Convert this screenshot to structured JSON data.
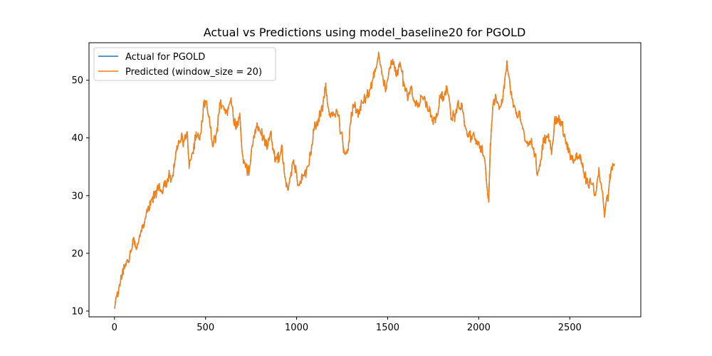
{
  "chart_data": {
    "type": "line",
    "title": "Actual vs Predictions using model_baseline20 for PGOLD",
    "xlabel": "",
    "ylabel": "",
    "xlim": [
      -140,
      2890
    ],
    "ylim": [
      9,
      56.5
    ],
    "xticks": [
      0,
      500,
      1000,
      1500,
      2000,
      2500
    ],
    "yticks": [
      10,
      20,
      30,
      40,
      50
    ],
    "grid": false,
    "legend_position": "top-left",
    "series": [
      {
        "name": "Actual for PGOLD",
        "color": "#1f77b4",
        "anchors": [
          [
            0,
            11.0
          ],
          [
            15,
            12.5
          ],
          [
            30,
            15.0
          ],
          [
            45,
            17.0
          ],
          [
            60,
            18.0
          ],
          [
            80,
            19.0
          ],
          [
            100,
            22.0
          ],
          [
            120,
            21.5
          ],
          [
            140,
            23.0
          ],
          [
            160,
            25.0
          ],
          [
            180,
            27.5
          ],
          [
            200,
            29.0
          ],
          [
            220,
            30.0
          ],
          [
            240,
            31.5
          ],
          [
            260,
            30.5
          ],
          [
            280,
            32.0
          ],
          [
            300,
            33.5
          ],
          [
            320,
            33.0
          ],
          [
            340,
            38.0
          ],
          [
            360,
            40.0
          ],
          [
            380,
            39.5
          ],
          [
            400,
            40.5
          ],
          [
            410,
            35.0
          ],
          [
            430,
            37.5
          ],
          [
            450,
            41.0
          ],
          [
            470,
            40.0
          ],
          [
            490,
            45.5
          ],
          [
            500,
            46.5
          ],
          [
            520,
            43.0
          ],
          [
            540,
            39.0
          ],
          [
            560,
            40.5
          ],
          [
            580,
            46.0
          ],
          [
            600,
            45.0
          ],
          [
            620,
            44.5
          ],
          [
            640,
            47.5
          ],
          [
            655,
            43.0
          ],
          [
            670,
            42.0
          ],
          [
            690,
            43.5
          ],
          [
            705,
            36.0
          ],
          [
            720,
            35.0
          ],
          [
            740,
            34.0
          ],
          [
            760,
            39.5
          ],
          [
            780,
            42.0
          ],
          [
            800,
            41.5
          ],
          [
            820,
            40.0
          ],
          [
            840,
            38.5
          ],
          [
            860,
            40.5
          ],
          [
            880,
            36.5
          ],
          [
            900,
            36.5
          ],
          [
            920,
            38.0
          ],
          [
            940,
            32.0
          ],
          [
            960,
            31.5
          ],
          [
            980,
            36.0
          ],
          [
            1000,
            34.0
          ],
          [
            1010,
            31.0
          ],
          [
            1030,
            33.5
          ],
          [
            1060,
            34.5
          ],
          [
            1080,
            38.0
          ],
          [
            1100,
            42.0
          ],
          [
            1120,
            43.0
          ],
          [
            1140,
            45.0
          ],
          [
            1160,
            49.0
          ],
          [
            1180,
            44.0
          ],
          [
            1200,
            43.5
          ],
          [
            1220,
            45.0
          ],
          [
            1240,
            41.5
          ],
          [
            1260,
            38.0
          ],
          [
            1280,
            37.0
          ],
          [
            1300,
            44.0
          ],
          [
            1320,
            46.0
          ],
          [
            1340,
            44.0
          ],
          [
            1360,
            46.0
          ],
          [
            1380,
            47.0
          ],
          [
            1400,
            48.0
          ],
          [
            1420,
            50.5
          ],
          [
            1440,
            52.0
          ],
          [
            1450,
            55.0
          ],
          [
            1470,
            50.5
          ],
          [
            1490,
            48.0
          ],
          [
            1510,
            52.0
          ],
          [
            1530,
            53.5
          ],
          [
            1550,
            51.0
          ],
          [
            1570,
            53.0
          ],
          [
            1590,
            49.0
          ],
          [
            1610,
            47.5
          ],
          [
            1630,
            48.5
          ],
          [
            1650,
            46.0
          ],
          [
            1670,
            45.5
          ],
          [
            1690,
            47.5
          ],
          [
            1710,
            46.0
          ],
          [
            1730,
            45.0
          ],
          [
            1750,
            43.0
          ],
          [
            1770,
            43.5
          ],
          [
            1790,
            48.0
          ],
          [
            1810,
            47.0
          ],
          [
            1830,
            48.5
          ],
          [
            1850,
            43.5
          ],
          [
            1870,
            44.0
          ],
          [
            1890,
            46.0
          ],
          [
            1910,
            45.0
          ],
          [
            1930,
            41.0
          ],
          [
            1950,
            40.5
          ],
          [
            1970,
            40.0
          ],
          [
            1990,
            39.5
          ],
          [
            2010,
            38.5
          ],
          [
            2030,
            37.0
          ],
          [
            2045,
            31.0
          ],
          [
            2055,
            29.5
          ],
          [
            2065,
            39.0
          ],
          [
            2080,
            46.5
          ],
          [
            2100,
            47.0
          ],
          [
            2120,
            45.0
          ],
          [
            2140,
            49.0
          ],
          [
            2155,
            53.5
          ],
          [
            2170,
            49.0
          ],
          [
            2190,
            46.0
          ],
          [
            2210,
            44.0
          ],
          [
            2230,
            43.5
          ],
          [
            2250,
            40.0
          ],
          [
            2270,
            39.0
          ],
          [
            2290,
            39.5
          ],
          [
            2310,
            37.0
          ],
          [
            2325,
            33.0
          ],
          [
            2340,
            36.5
          ],
          [
            2360,
            40.0
          ],
          [
            2380,
            40.5
          ],
          [
            2400,
            38.0
          ],
          [
            2420,
            43.5
          ],
          [
            2440,
            43.0
          ],
          [
            2460,
            42.0
          ],
          [
            2480,
            39.0
          ],
          [
            2500,
            37.5
          ],
          [
            2520,
            36.0
          ],
          [
            2540,
            37.0
          ],
          [
            2560,
            36.5
          ],
          [
            2580,
            33.5
          ],
          [
            2600,
            32.0
          ],
          [
            2620,
            32.5
          ],
          [
            2640,
            30.0
          ],
          [
            2660,
            34.5
          ],
          [
            2680,
            30.0
          ],
          [
            2690,
            26.5
          ],
          [
            2700,
            28.5
          ],
          [
            2710,
            30.0
          ],
          [
            2720,
            33.0
          ],
          [
            2730,
            34.5
          ],
          [
            2745,
            35.5
          ]
        ]
      },
      {
        "name": "Predicted (window_size = 20)",
        "color": "#ff7f0e",
        "anchors": [
          [
            0,
            11.0
          ],
          [
            15,
            12.5
          ],
          [
            30,
            15.0
          ],
          [
            45,
            17.0
          ],
          [
            60,
            18.0
          ],
          [
            80,
            19.0
          ],
          [
            100,
            22.0
          ],
          [
            120,
            21.5
          ],
          [
            140,
            23.0
          ],
          [
            160,
            25.0
          ],
          [
            180,
            27.5
          ],
          [
            200,
            29.0
          ],
          [
            220,
            30.0
          ],
          [
            240,
            31.5
          ],
          [
            260,
            30.5
          ],
          [
            280,
            32.0
          ],
          [
            300,
            33.5
          ],
          [
            320,
            33.0
          ],
          [
            340,
            38.0
          ],
          [
            360,
            40.0
          ],
          [
            380,
            39.5
          ],
          [
            400,
            40.5
          ],
          [
            410,
            35.0
          ],
          [
            430,
            37.5
          ],
          [
            450,
            41.0
          ],
          [
            470,
            40.0
          ],
          [
            490,
            45.5
          ],
          [
            500,
            46.5
          ],
          [
            520,
            43.0
          ],
          [
            540,
            39.0
          ],
          [
            560,
            40.5
          ],
          [
            580,
            46.0
          ],
          [
            600,
            45.0
          ],
          [
            620,
            44.5
          ],
          [
            640,
            47.5
          ],
          [
            655,
            43.0
          ],
          [
            670,
            42.0
          ],
          [
            690,
            43.5
          ],
          [
            705,
            36.0
          ],
          [
            720,
            35.0
          ],
          [
            740,
            34.0
          ],
          [
            760,
            39.5
          ],
          [
            780,
            42.0
          ],
          [
            800,
            41.5
          ],
          [
            820,
            40.0
          ],
          [
            840,
            38.5
          ],
          [
            860,
            40.5
          ],
          [
            880,
            36.5
          ],
          [
            900,
            36.5
          ],
          [
            920,
            38.0
          ],
          [
            940,
            32.0
          ],
          [
            960,
            31.5
          ],
          [
            980,
            36.0
          ],
          [
            1000,
            34.0
          ],
          [
            1010,
            31.0
          ],
          [
            1030,
            33.5
          ],
          [
            1060,
            34.5
          ],
          [
            1080,
            38.0
          ],
          [
            1100,
            42.0
          ],
          [
            1120,
            43.0
          ],
          [
            1140,
            45.0
          ],
          [
            1160,
            49.0
          ],
          [
            1180,
            44.0
          ],
          [
            1200,
            43.5
          ],
          [
            1220,
            45.0
          ],
          [
            1240,
            41.5
          ],
          [
            1260,
            38.0
          ],
          [
            1280,
            37.0
          ],
          [
            1300,
            44.0
          ],
          [
            1320,
            46.0
          ],
          [
            1340,
            44.0
          ],
          [
            1360,
            46.0
          ],
          [
            1380,
            47.0
          ],
          [
            1400,
            48.0
          ],
          [
            1420,
            50.5
          ],
          [
            1440,
            52.0
          ],
          [
            1450,
            55.0
          ],
          [
            1470,
            50.5
          ],
          [
            1490,
            48.0
          ],
          [
            1510,
            52.0
          ],
          [
            1530,
            53.5
          ],
          [
            1550,
            51.0
          ],
          [
            1570,
            53.0
          ],
          [
            1590,
            49.0
          ],
          [
            1610,
            47.5
          ],
          [
            1630,
            48.5
          ],
          [
            1650,
            46.0
          ],
          [
            1670,
            45.5
          ],
          [
            1690,
            47.5
          ],
          [
            1710,
            46.0
          ],
          [
            1730,
            45.0
          ],
          [
            1750,
            43.0
          ],
          [
            1770,
            43.5
          ],
          [
            1790,
            48.0
          ],
          [
            1810,
            47.0
          ],
          [
            1830,
            48.5
          ],
          [
            1850,
            43.5
          ],
          [
            1870,
            44.0
          ],
          [
            1890,
            46.0
          ],
          [
            1910,
            45.0
          ],
          [
            1930,
            41.0
          ],
          [
            1950,
            40.5
          ],
          [
            1970,
            40.0
          ],
          [
            1990,
            39.5
          ],
          [
            2010,
            38.5
          ],
          [
            2030,
            37.0
          ],
          [
            2045,
            31.0
          ],
          [
            2055,
            29.5
          ],
          [
            2065,
            39.0
          ],
          [
            2080,
            46.5
          ],
          [
            2100,
            47.0
          ],
          [
            2120,
            45.0
          ],
          [
            2140,
            49.0
          ],
          [
            2155,
            53.5
          ],
          [
            2170,
            49.0
          ],
          [
            2190,
            46.0
          ],
          [
            2210,
            44.0
          ],
          [
            2230,
            43.5
          ],
          [
            2250,
            40.0
          ],
          [
            2270,
            39.0
          ],
          [
            2290,
            39.5
          ],
          [
            2310,
            37.0
          ],
          [
            2325,
            33.0
          ],
          [
            2340,
            36.5
          ],
          [
            2360,
            40.0
          ],
          [
            2380,
            40.5
          ],
          [
            2400,
            38.0
          ],
          [
            2420,
            43.5
          ],
          [
            2440,
            43.0
          ],
          [
            2460,
            42.0
          ],
          [
            2480,
            39.0
          ],
          [
            2500,
            37.5
          ],
          [
            2520,
            36.0
          ],
          [
            2540,
            37.0
          ],
          [
            2560,
            36.5
          ],
          [
            2580,
            33.5
          ],
          [
            2600,
            32.0
          ],
          [
            2620,
            32.5
          ],
          [
            2640,
            30.0
          ],
          [
            2660,
            34.5
          ],
          [
            2680,
            30.0
          ],
          [
            2690,
            26.5
          ],
          [
            2700,
            28.5
          ],
          [
            2710,
            30.0
          ],
          [
            2720,
            33.0
          ],
          [
            2730,
            34.5
          ],
          [
            2745,
            35.5
          ]
        ]
      }
    ]
  }
}
